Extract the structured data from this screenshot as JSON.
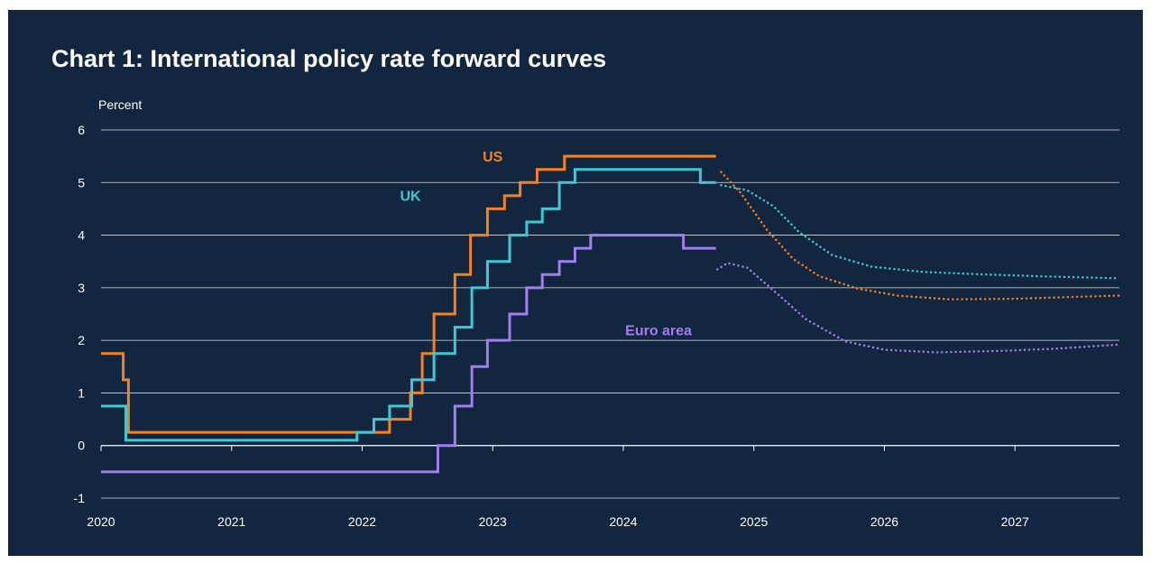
{
  "title": "Chart 1: International policy rate forward curves",
  "colors": {
    "background": "#13263f",
    "gridline": "#ffffff",
    "text": "#ffffff"
  },
  "chart_data": {
    "type": "line",
    "title": "Chart 1: International policy rate forward curves",
    "ylabel": "Percent",
    "xlabel": "",
    "ylim": [
      -1,
      6
    ],
    "yticks": [
      -1,
      0,
      1,
      2,
      3,
      4,
      5,
      6
    ],
    "xlim": [
      2020,
      2027.8
    ],
    "xticks": [
      2020,
      2021,
      2022,
      2023,
      2024,
      2025,
      2026,
      2027
    ],
    "xtick_labels": [
      "2020",
      "2021",
      "2022",
      "2023",
      "2024",
      "2025",
      "2026",
      "2027"
    ],
    "grid": "horizontal",
    "legend": "none",
    "series": [
      {
        "name": "US",
        "color": "#f5821f",
        "label_at": [
          2023.0,
          5.4
        ],
        "actual": {
          "style": "step",
          "points": [
            [
              2020.0,
              1.75
            ],
            [
              2020.17,
              1.25
            ],
            [
              2020.21,
              0.25
            ],
            [
              2022.21,
              0.5
            ],
            [
              2022.37,
              1.0
            ],
            [
              2022.46,
              1.75
            ],
            [
              2022.55,
              2.5
            ],
            [
              2022.71,
              3.25
            ],
            [
              2022.83,
              4.0
            ],
            [
              2022.96,
              4.5
            ],
            [
              2023.09,
              4.75
            ],
            [
              2023.21,
              5.0
            ],
            [
              2023.34,
              5.25
            ],
            [
              2023.55,
              5.5
            ],
            [
              2024.71,
              5.5
            ]
          ]
        },
        "forward": {
          "style": "dotted",
          "points": [
            [
              2024.75,
              5.2
            ],
            [
              2024.9,
              4.8
            ],
            [
              2025.1,
              4.1
            ],
            [
              2025.3,
              3.55
            ],
            [
              2025.5,
              3.22
            ],
            [
              2025.8,
              2.98
            ],
            [
              2026.1,
              2.85
            ],
            [
              2026.5,
              2.78
            ],
            [
              2027.0,
              2.79
            ],
            [
              2027.5,
              2.83
            ],
            [
              2027.8,
              2.85
            ]
          ]
        }
      },
      {
        "name": "UK",
        "color": "#40c8d2",
        "label_at": [
          2022.37,
          4.65
        ],
        "actual": {
          "style": "step",
          "points": [
            [
              2020.0,
              0.75
            ],
            [
              2020.19,
              0.1
            ],
            [
              2021.96,
              0.25
            ],
            [
              2022.09,
              0.5
            ],
            [
              2022.21,
              0.75
            ],
            [
              2022.38,
              1.25
            ],
            [
              2022.55,
              1.75
            ],
            [
              2022.71,
              2.25
            ],
            [
              2022.84,
              3.0
            ],
            [
              2022.96,
              3.5
            ],
            [
              2023.13,
              4.0
            ],
            [
              2023.26,
              4.25
            ],
            [
              2023.38,
              4.5
            ],
            [
              2023.51,
              5.0
            ],
            [
              2023.63,
              5.25
            ],
            [
              2024.59,
              5.0
            ],
            [
              2024.71,
              5.0
            ]
          ]
        },
        "forward": {
          "style": "dotted",
          "points": [
            [
              2024.75,
              4.95
            ],
            [
              2024.95,
              4.85
            ],
            [
              2025.15,
              4.55
            ],
            [
              2025.35,
              4.05
            ],
            [
              2025.6,
              3.62
            ],
            [
              2025.9,
              3.4
            ],
            [
              2026.3,
              3.3
            ],
            [
              2026.8,
              3.25
            ],
            [
              2027.3,
              3.21
            ],
            [
              2027.8,
              3.18
            ]
          ]
        }
      },
      {
        "name": "Euro area",
        "color": "#a27ef0",
        "label_at": [
          2024.27,
          2.1
        ],
        "actual": {
          "style": "step",
          "points": [
            [
              2020.0,
              -0.5
            ],
            [
              2022.58,
              0.0
            ],
            [
              2022.71,
              0.75
            ],
            [
              2022.84,
              1.5
            ],
            [
              2022.96,
              2.0
            ],
            [
              2023.13,
              2.5
            ],
            [
              2023.26,
              3.0
            ],
            [
              2023.38,
              3.25
            ],
            [
              2023.51,
              3.5
            ],
            [
              2023.63,
              3.75
            ],
            [
              2023.75,
              4.0
            ],
            [
              2024.46,
              3.75
            ],
            [
              2024.71,
              3.75
            ]
          ]
        },
        "forward": {
          "style": "dotted",
          "points": [
            [
              2024.72,
              3.35
            ],
            [
              2024.8,
              3.47
            ],
            [
              2024.95,
              3.38
            ],
            [
              2025.15,
              2.95
            ],
            [
              2025.4,
              2.4
            ],
            [
              2025.7,
              1.98
            ],
            [
              2026.0,
              1.82
            ],
            [
              2026.4,
              1.77
            ],
            [
              2026.9,
              1.8
            ],
            [
              2027.3,
              1.84
            ],
            [
              2027.8,
              1.92
            ]
          ]
        }
      }
    ]
  }
}
